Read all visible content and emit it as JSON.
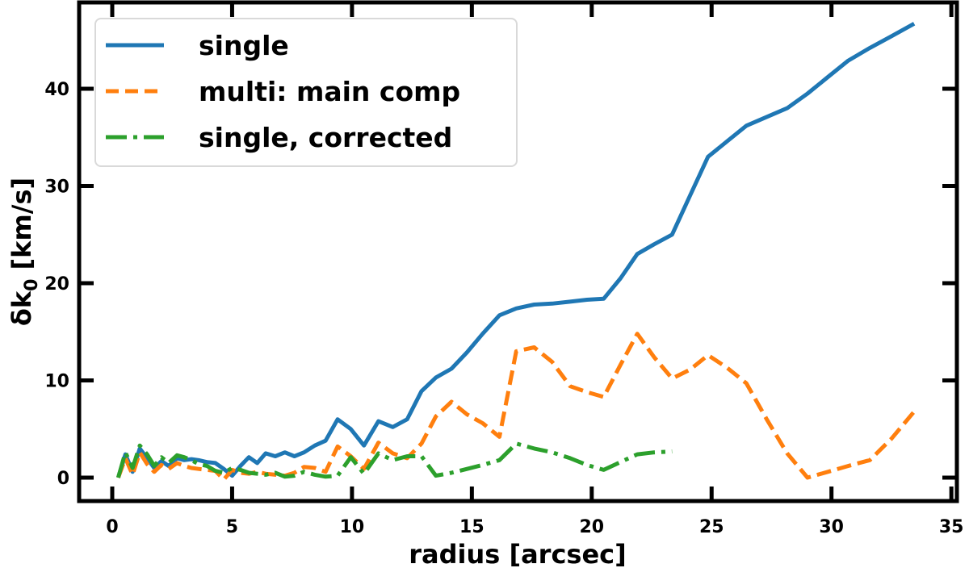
{
  "chart_data": {
    "type": "line",
    "title": "",
    "xlabel": "radius [arcsec]",
    "ylabel": "δk₀ [km/s]",
    "ylabel_main": "δk",
    "ylabel_sub": "0",
    "ylabel_unit": " [km/s]",
    "xlim": [
      -1.4,
      35.2
    ],
    "ylim": [
      -2.4,
      48.8
    ],
    "xticks": [
      0,
      5,
      10,
      15,
      20,
      25,
      30,
      35
    ],
    "yticks": [
      0,
      10,
      20,
      30,
      40
    ],
    "grid": false,
    "legend_position": "upper left",
    "series": [
      {
        "name": "single",
        "color": "#1f77b4",
        "style": "solid",
        "x": [
          0.25,
          0.55,
          0.85,
          1.15,
          1.45,
          1.75,
          2.05,
          2.35,
          2.7,
          3.0,
          3.3,
          3.6,
          3.95,
          4.3,
          4.65,
          5.0,
          5.35,
          5.7,
          6.05,
          6.4,
          6.8,
          7.2,
          7.6,
          8.0,
          8.45,
          8.9,
          9.4,
          9.95,
          10.5,
          11.1,
          11.7,
          12.3,
          12.9,
          13.5,
          14.15,
          14.8,
          15.45,
          16.15,
          16.85,
          17.6,
          18.35,
          19.1,
          19.8,
          20.5,
          21.2,
          21.9,
          22.6,
          23.35,
          24.1,
          24.85,
          25.65,
          26.45,
          27.3,
          28.15,
          29.0,
          29.85,
          30.7,
          31.6,
          32.5,
          33.45
        ],
        "y": [
          0.0,
          2.4,
          0.6,
          3.0,
          2.0,
          1.0,
          1.7,
          1.2,
          2.0,
          1.8,
          1.9,
          1.8,
          1.6,
          1.5,
          0.9,
          0.2,
          1.2,
          2.1,
          1.5,
          2.5,
          2.2,
          2.6,
          2.2,
          2.6,
          3.3,
          3.8,
          6.0,
          5.0,
          3.3,
          5.8,
          5.2,
          6.0,
          8.9,
          10.3,
          11.2,
          12.9,
          14.8,
          16.7,
          17.4,
          17.8,
          17.9,
          18.1,
          18.3,
          18.4,
          20.5,
          23.0,
          24.0,
          25.0,
          29.0,
          33.0,
          34.6,
          36.2,
          37.1,
          38.0,
          39.5,
          41.2,
          42.9,
          44.2,
          45.4,
          46.7
        ]
      },
      {
        "name": "multi: main comp",
        "color": "#ff7f0e",
        "style": "dashed",
        "x": [
          0.25,
          0.55,
          0.85,
          1.15,
          1.45,
          1.75,
          2.05,
          2.35,
          2.7,
          3.0,
          3.3,
          3.6,
          3.95,
          4.3,
          4.65,
          5.0,
          5.35,
          5.7,
          6.05,
          6.4,
          6.8,
          7.2,
          7.6,
          8.0,
          8.45,
          8.9,
          9.4,
          9.95,
          10.5,
          11.1,
          11.7,
          12.3,
          12.9,
          13.5,
          14.15,
          14.8,
          15.45,
          16.15,
          16.85,
          17.6,
          18.35,
          19.1,
          19.8,
          20.5,
          21.2,
          21.9,
          22.6,
          23.35,
          24.1,
          24.85,
          25.65,
          26.45,
          27.3,
          28.15,
          29.0,
          29.85,
          30.7,
          31.6,
          32.5,
          33.45
        ],
        "y": [
          0.0,
          2.0,
          0.3,
          2.6,
          1.4,
          0.6,
          1.3,
          0.9,
          1.5,
          1.2,
          1.0,
          0.9,
          0.8,
          0.7,
          -0.2,
          0.8,
          0.5,
          0.4,
          0.6,
          0.4,
          0.3,
          0.2,
          0.5,
          1.1,
          1.0,
          0.6,
          3.2,
          2.2,
          0.9,
          3.6,
          2.5,
          2.0,
          3.5,
          6.3,
          7.8,
          6.5,
          5.6,
          4.2,
          13.0,
          13.4,
          11.9,
          9.4,
          8.8,
          8.3,
          11.6,
          14.8,
          12.4,
          10.2,
          11.1,
          12.6,
          11.3,
          9.7,
          6.0,
          2.5,
          0.0,
          0.6,
          1.2,
          1.8,
          4.0,
          6.8
        ]
      },
      {
        "name": "single, corrected",
        "color": "#2ca02c",
        "style": "dashdot",
        "x": [
          0.25,
          0.55,
          0.85,
          1.15,
          1.45,
          1.75,
          2.05,
          2.35,
          2.7,
          3.0,
          3.3,
          3.6,
          3.95,
          4.3,
          4.65,
          5.0,
          5.35,
          5.7,
          6.05,
          6.4,
          6.8,
          7.2,
          7.6,
          8.0,
          8.45,
          8.9,
          9.4,
          9.95,
          10.5,
          11.1,
          11.7,
          12.3,
          12.9,
          13.5,
          14.15,
          14.8,
          15.45,
          16.15,
          16.85,
          17.6,
          18.35,
          19.1,
          19.8,
          20.5,
          21.2,
          21.9,
          22.6,
          23.35
        ],
        "y": [
          0.0,
          2.6,
          1.0,
          3.3,
          2.4,
          1.2,
          2.1,
          1.5,
          2.3,
          2.1,
          1.8,
          1.4,
          1.2,
          0.7,
          0.5,
          1.0,
          0.8,
          0.5,
          0.4,
          0.3,
          0.5,
          0.1,
          0.2,
          0.6,
          0.3,
          0.1,
          0.2,
          2.1,
          0.4,
          2.5,
          1.8,
          2.2,
          2.2,
          0.2,
          0.5,
          0.9,
          1.3,
          1.8,
          3.5,
          3.0,
          2.6,
          2.0,
          1.3,
          0.8,
          1.6,
          2.4,
          2.6,
          2.7
        ]
      }
    ]
  },
  "legend": {
    "items": [
      {
        "label": "single",
        "color": "#1f77b4",
        "style": "solid"
      },
      {
        "label": "multi: main comp",
        "color": "#ff7f0e",
        "style": "dashed"
      },
      {
        "label": "single, corrected",
        "color": "#2ca02c",
        "style": "dashdot"
      }
    ]
  }
}
